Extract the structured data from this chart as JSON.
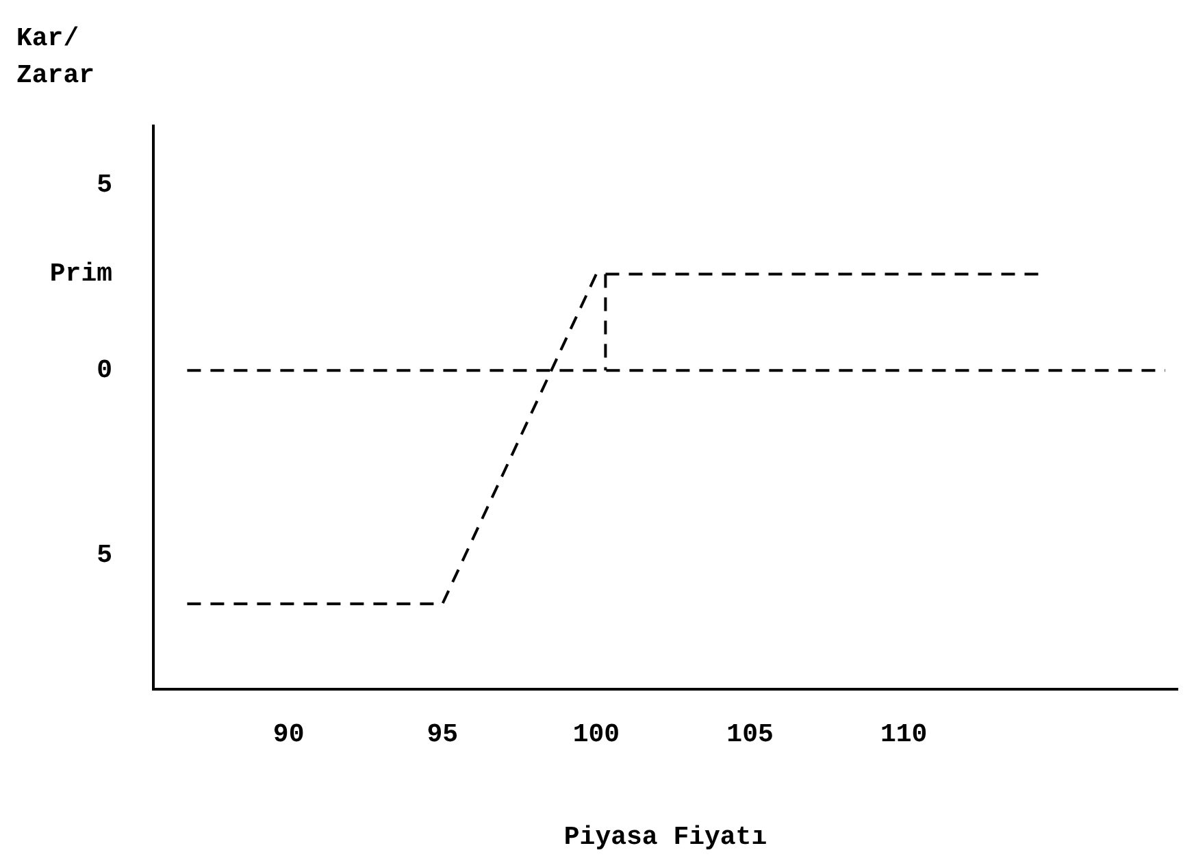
{
  "chart_data": {
    "type": "line",
    "xlabel": "Piyasa Fiyatı",
    "ylabel": "Kar/ Zarar",
    "xlim": [
      85.6,
      118.9
    ],
    "xticks": [
      90,
      95,
      100,
      105,
      110
    ],
    "ylim": [
      -8.6,
      6.6
    ],
    "yticks": [
      {
        "value": 5,
        "label": "5"
      },
      {
        "value": 2.6,
        "label": "Prim"
      },
      {
        "value": 0,
        "label": "0"
      },
      {
        "value": -5,
        "label": "5"
      }
    ],
    "series": [
      {
        "color": "#000000",
        "x": [
          86.7,
          95,
          100,
          114.5
        ],
        "values": [
          -6.3,
          -6.3,
          2.6,
          2.6
        ]
      },
      {
        "color": "#000000",
        "x": [
          86.7,
          118.5
        ],
        "values": [
          0,
          0
        ]
      },
      {
        "color": "#000000",
        "x": [
          100.3,
          100.3
        ],
        "values": [
          2.6,
          0
        ]
      }
    ],
    "grid": false,
    "legend": false,
    "marker": "none",
    "line_style": "dashed"
  }
}
